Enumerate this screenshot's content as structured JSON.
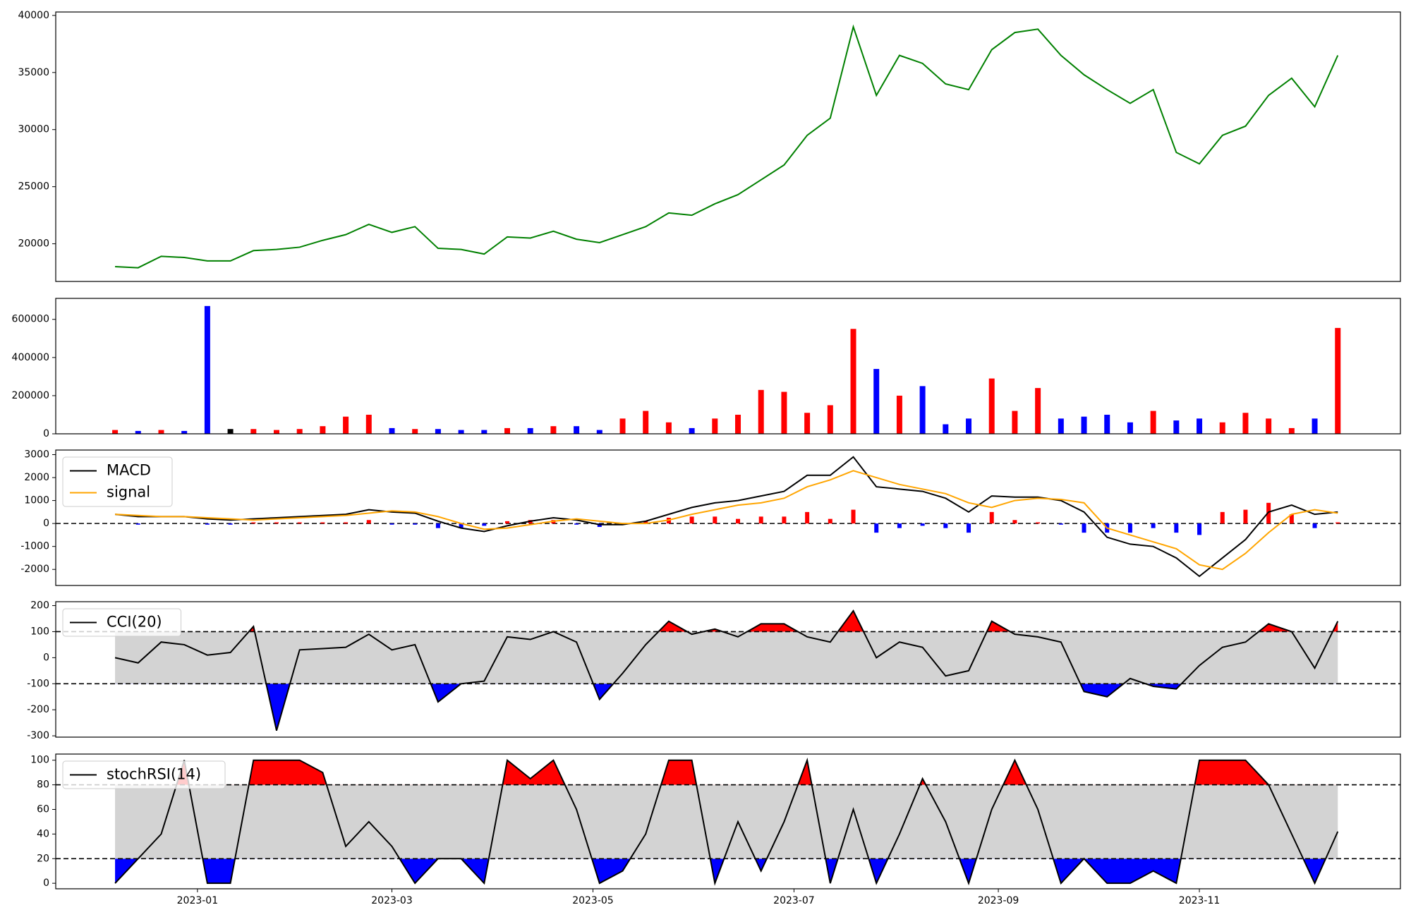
{
  "chart_data": [
    {
      "type": "line",
      "color": "green",
      "x": [
        "2022-12-07",
        "2022-12-14",
        "2022-12-21",
        "2022-12-28",
        "2023-01-04",
        "2023-01-11",
        "2023-01-18",
        "2023-01-25",
        "2023-02-01",
        "2023-02-08",
        "2023-02-15",
        "2023-02-22",
        "2023-03-01",
        "2023-03-08",
        "2023-03-15",
        "2023-03-22",
        "2023-03-29",
        "2023-04-05",
        "2023-04-12",
        "2023-04-19",
        "2023-04-26",
        "2023-05-03",
        "2023-05-10",
        "2023-05-17",
        "2023-05-24",
        "2023-05-31",
        "2023-06-07",
        "2023-06-14",
        "2023-06-21",
        "2023-06-28",
        "2023-07-05",
        "2023-07-12",
        "2023-07-19",
        "2023-07-26",
        "2023-08-02",
        "2023-08-09",
        "2023-08-16",
        "2023-08-23",
        "2023-08-30",
        "2023-09-06",
        "2023-09-13",
        "2023-09-20",
        "2023-09-27",
        "2023-10-04",
        "2023-10-11",
        "2023-10-18",
        "2023-10-25",
        "2023-11-01",
        "2023-11-08",
        "2023-11-15",
        "2023-11-22",
        "2023-11-29",
        "2023-12-06",
        "2023-12-13"
      ],
      "values": [
        18000,
        17900,
        18900,
        18800,
        18500,
        18500,
        19400,
        19500,
        19700,
        20300,
        20800,
        21700,
        21000,
        21500,
        19600,
        19500,
        19100,
        20600,
        20500,
        21100,
        20400,
        20100,
        20800,
        21500,
        22700,
        22500,
        23500,
        24300,
        25600,
        26900,
        29500,
        31000,
        39000,
        33000,
        36500,
        35800,
        34000,
        33500,
        37000,
        38500,
        38800,
        36500,
        34800,
        33500,
        32300,
        33500,
        28000,
        27000,
        29500,
        30300,
        33000,
        34500,
        32000,
        36500
      ],
      "ylim": [
        16700,
        40300
      ],
      "yticks": [
        20000,
        25000,
        30000,
        35000,
        40000
      ]
    },
    {
      "type": "bar",
      "values": [
        20000,
        15000,
        20000,
        15000,
        670000,
        25000,
        25000,
        20000,
        25000,
        40000,
        90000,
        100000,
        30000,
        25000,
        25000,
        20000,
        20000,
        30000,
        30000,
        40000,
        40000,
        20000,
        80000,
        120000,
        60000,
        30000,
        80000,
        100000,
        230000,
        220000,
        110000,
        150000,
        550000,
        340000,
        200000,
        250000,
        50000,
        80000,
        290000,
        120000,
        240000,
        80000,
        90000,
        100000,
        60000,
        120000,
        70000,
        80000,
        60000,
        110000,
        80000,
        30000,
        80000,
        555000
      ],
      "colors": [
        "red",
        "blue",
        "red",
        "blue",
        "blue",
        "black",
        "red",
        "red",
        "red",
        "red",
        "red",
        "red",
        "blue",
        "red",
        "blue",
        "blue",
        "blue",
        "red",
        "blue",
        "red",
        "blue",
        "blue",
        "red",
        "red",
        "red",
        "blue",
        "red",
        "red",
        "red",
        "red",
        "red",
        "red",
        "red",
        "blue",
        "red",
        "blue",
        "blue",
        "blue",
        "red",
        "red",
        "red",
        "blue",
        "blue",
        "blue",
        "blue",
        "red",
        "blue",
        "blue",
        "red",
        "red",
        "red",
        "red",
        "blue",
        "red"
      ],
      "ylim": [
        0,
        710000
      ],
      "yticks": [
        0,
        200000,
        400000,
        600000
      ]
    },
    {
      "type": "line",
      "legend": "upper left",
      "series": [
        {
          "name": "MACD",
          "color": "black",
          "values": [
            400,
            300,
            300,
            300,
            200,
            150,
            200,
            250,
            300,
            350,
            400,
            600,
            500,
            450,
            100,
            -200,
            -350,
            -100,
            100,
            250,
            150,
            -50,
            -50,
            100,
            400,
            700,
            900,
            1000,
            1200,
            1400,
            2100,
            2100,
            2900,
            1600,
            1500,
            1400,
            1100,
            500,
            1200,
            1150,
            1150,
            1000,
            500,
            -600,
            -900,
            -1000,
            -1500,
            -2300,
            -1500,
            -700,
            500,
            800,
            400,
            500
          ]
        },
        {
          "name": "signal",
          "color": "orange",
          "values": [
            400,
            350,
            300,
            300,
            250,
            200,
            150,
            200,
            250,
            300,
            350,
            450,
            550,
            500,
            300,
            0,
            -250,
            -200,
            -50,
            100,
            200,
            100,
            0,
            0,
            150,
            400,
            600,
            800,
            900,
            1100,
            1600,
            1900,
            2300,
            2000,
            1700,
            1500,
            1300,
            900,
            700,
            1000,
            1100,
            1050,
            900,
            -200,
            -500,
            -800,
            -1100,
            -1800,
            -2000,
            -1300,
            -400,
            400,
            600,
            450
          ]
        }
      ],
      "histogram": {
        "pos_color": "red",
        "neg_color": "blue",
        "values": [
          0,
          -50,
          0,
          0,
          -50,
          -50,
          50,
          50,
          50,
          50,
          50,
          150,
          -50,
          -50,
          -200,
          -200,
          -100,
          100,
          150,
          150,
          -50,
          -150,
          -50,
          100,
          250,
          300,
          300,
          200,
          300,
          300,
          500,
          200,
          600,
          -400,
          -200,
          -100,
          -200,
          -400,
          500,
          150,
          50,
          -50,
          -400,
          -400,
          -400,
          -200,
          -400,
          -500,
          500,
          600,
          900,
          400,
          -200,
          50
        ]
      },
      "hlines": [
        0
      ],
      "ylim": [
        -2700,
        3200
      ],
      "yticks": [
        -2000,
        -1000,
        0,
        1000,
        2000,
        3000
      ]
    },
    {
      "type": "line",
      "legend": "upper left",
      "series": [
        {
          "name": "CCI(20)",
          "color": "black",
          "values": [
            0,
            -20,
            60,
            50,
            10,
            20,
            120,
            -280,
            30,
            35,
            40,
            90,
            30,
            50,
            -170,
            -100,
            -90,
            80,
            70,
            100,
            60,
            -160,
            -60,
            50,
            140,
            90,
            110,
            80,
            130,
            130,
            80,
            60,
            180,
            0,
            60,
            40,
            -70,
            -50,
            140,
            90,
            80,
            60,
            -130,
            -150,
            -80,
            -110,
            -120,
            -30,
            40,
            60,
            130,
            100,
            -40,
            140
          ]
        }
      ],
      "bands": [
        -100,
        100
      ],
      "band_color": "lightgray",
      "over_color": "red",
      "under_color": "blue",
      "ylim": [
        -305,
        215
      ],
      "yticks": [
        -300,
        -200,
        -100,
        0,
        100,
        200
      ]
    },
    {
      "type": "line",
      "legend": "upper left",
      "series": [
        {
          "name": "stochRSI(14)",
          "color": "black",
          "values": [
            0,
            20,
            40,
            100,
            0,
            0,
            100,
            100,
            100,
            90,
            30,
            50,
            30,
            0,
            20,
            20,
            0,
            100,
            85,
            100,
            60,
            0,
            10,
            40,
            100,
            100,
            0,
            50,
            10,
            50,
            100,
            0,
            60,
            0,
            40,
            85,
            50,
            0,
            60,
            100,
            60,
            0,
            20,
            0,
            0,
            10,
            0,
            100,
            100,
            100,
            80,
            40,
            0,
            42
          ]
        }
      ],
      "bands": [
        20,
        80
      ],
      "band_color": "lightgray",
      "over_color": "red",
      "under_color": "blue",
      "ylim": [
        -4.5,
        105
      ],
      "yticks": [
        0,
        20,
        40,
        60,
        80,
        100
      ],
      "xlim": [
        "2022-11-19",
        "2024-01-01"
      ],
      "xticks": [
        {
          "value": "2023-01-01",
          "label": "2023-01"
        },
        {
          "value": "2023-03-01",
          "label": "2023-03"
        },
        {
          "value": "2023-05-01",
          "label": "2023-05"
        },
        {
          "value": "2023-07-01",
          "label": "2023-07"
        },
        {
          "value": "2023-09-01",
          "label": "2023-09"
        },
        {
          "value": "2023-11-01",
          "label": "2023-11"
        }
      ]
    }
  ]
}
